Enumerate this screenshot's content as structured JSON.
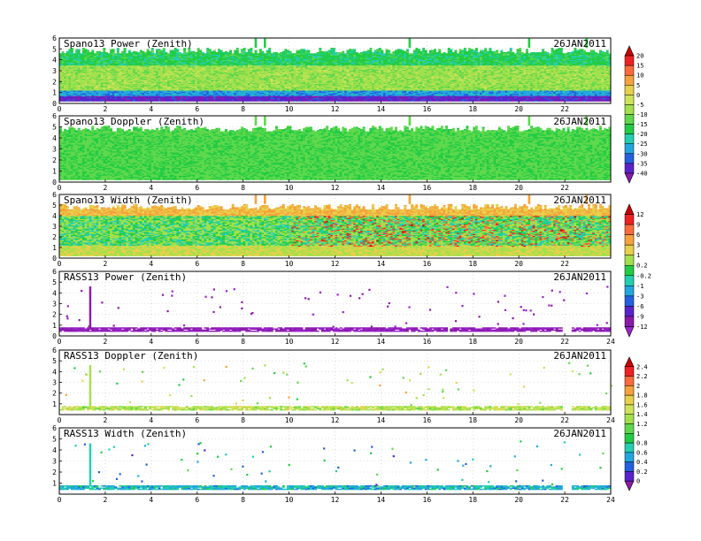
{
  "chart_data": [
    {
      "type": "heatmap",
      "title": "Spano13 Power (Zenith)",
      "date": "26JAN2011",
      "x_ticks": [
        "0",
        "2",
        "4",
        "6",
        "8",
        "10",
        "12",
        "14",
        "16",
        "18",
        "20",
        "22"
      ],
      "y_ticks": [
        "0",
        "1",
        "2",
        "3",
        "4",
        "5",
        "6"
      ],
      "xlim": [
        0,
        24
      ],
      "ylim": [
        0,
        6
      ],
      "scale_group": "A",
      "field": "power",
      "data_bands": [
        {
          "y": [
            0.2,
            0.7
          ],
          "value": -38
        },
        {
          "y": [
            0.7,
            1.2
          ],
          "value": -28
        },
        {
          "y": [
            1.2,
            3.5
          ],
          "value": -8
        },
        {
          "y": [
            3.5,
            5.1
          ],
          "value": -18
        }
      ],
      "top_height": 5.1
    },
    {
      "type": "heatmap",
      "title": "Spano13 Doppler (Zenith)",
      "date": "26JAN2011",
      "x_ticks": [
        "0",
        "2",
        "4",
        "6",
        "8",
        "10",
        "12",
        "14",
        "16",
        "18",
        "20",
        "22"
      ],
      "y_ticks": [
        "0",
        "1",
        "2",
        "3",
        "4",
        "5",
        "6"
      ],
      "xlim": [
        0,
        24
      ],
      "ylim": [
        0,
        6
      ],
      "scale_group": "A",
      "field": "doppler",
      "data_bands": [
        {
          "y": [
            0.2,
            5.1
          ],
          "value": -14
        }
      ],
      "top_height": 5.1
    },
    {
      "type": "heatmap",
      "title": "Spano13 Width (Zenith)",
      "date": "26JAN2011",
      "x_ticks": [
        "0",
        "2",
        "4",
        "6",
        "8",
        "10",
        "12",
        "14",
        "16",
        "18",
        "20",
        "22"
      ],
      "y_ticks": [
        "0",
        "1",
        "2",
        "3",
        "4",
        "5",
        "6"
      ],
      "xlim": [
        0,
        24
      ],
      "ylim": [
        0,
        6
      ],
      "scale_group": "B",
      "field": "width",
      "data_bands": [
        {
          "y": [
            0.2,
            1.2
          ],
          "value": 1
        },
        {
          "y": [
            1.2,
            4.0
          ],
          "value": 0.2
        },
        {
          "y": [
            4.0,
            5.1
          ],
          "value": 3
        }
      ],
      "top_height": 5.1
    },
    {
      "type": "heatmap",
      "title": "RASS13 Power (Zenith)",
      "date": "26JAN2011",
      "x_ticks": [
        "0",
        "2",
        "4",
        "6",
        "8",
        "10",
        "12",
        "14",
        "16",
        "18",
        "20",
        "22",
        "24"
      ],
      "y_ticks": [
        "0",
        "1",
        "2",
        "3",
        "4",
        "5",
        "6"
      ],
      "xlim": [
        0,
        24
      ],
      "ylim": [
        0,
        6
      ],
      "scale_group": "B",
      "field": "rass_power",
      "data_bands": [
        {
          "y": [
            0.4,
            0.75
          ],
          "value": -12
        }
      ],
      "spike": {
        "x": 1.3,
        "y": [
          0.75,
          4.6
        ],
        "value": -12
      }
    },
    {
      "type": "heatmap",
      "title": "RASS13 Doppler (Zenith)",
      "date": "26JAN2011",
      "x_ticks": [
        "0",
        "2",
        "4",
        "6",
        "8",
        "10",
        "12",
        "14",
        "16",
        "18",
        "20",
        "22",
        "24"
      ],
      "y_ticks": [
        "1",
        "2",
        "3",
        "4",
        "5",
        "6"
      ],
      "xlim": [
        0,
        24
      ],
      "ylim": [
        0,
        6
      ],
      "scale_group": "C",
      "field": "rass_doppler",
      "data_bands": [
        {
          "y": [
            0.4,
            0.75
          ],
          "value": 1.4
        }
      ],
      "spike": {
        "x": 1.3,
        "y": [
          0.75,
          4.6
        ],
        "value": 1.2
      }
    },
    {
      "type": "heatmap",
      "title": "RASS13 Width (Zenith)",
      "date": "26JAN2011",
      "x_ticks": [
        "0",
        "2",
        "4",
        "6",
        "8",
        "10",
        "12",
        "14",
        "16",
        "18",
        "20",
        "22",
        "24"
      ],
      "y_ticks": [
        "1",
        "2",
        "3",
        "4",
        "5",
        "6"
      ],
      "xlim": [
        0,
        24
      ],
      "ylim": [
        0,
        6
      ],
      "scale_group": "C",
      "field": "rass_width",
      "data_bands": [
        {
          "y": [
            0.4,
            0.75
          ],
          "value": 0.6
        }
      ],
      "spike": {
        "x": 1.3,
        "y": [
          0.75,
          4.6
        ],
        "value": 0.6
      }
    }
  ],
  "colorbars": [
    {
      "group": "A",
      "labels": [
        "20",
        "15",
        "10",
        "5",
        "0",
        "-5",
        "-10",
        "-15",
        "-20",
        "-25",
        "-30",
        "-35",
        "-40"
      ],
      "colors": [
        "#cc0000",
        "#ee2222",
        "#ff6a3a",
        "#f6a23c",
        "#e8d04a",
        "#cfe35a",
        "#a2e04c",
        "#5fd84c",
        "#22cc44",
        "#22cfb0",
        "#22a6e0",
        "#2460e0",
        "#5a22cc",
        "#8a1aaa"
      ]
    },
    {
      "group": "B",
      "labels": [
        "12",
        "9",
        "6",
        "3",
        "1",
        "0.2",
        "-0.2",
        "-1",
        "-3",
        "-6",
        "-9",
        "-12"
      ],
      "colors": [
        "#cc0000",
        "#ee2222",
        "#ff6a3a",
        "#f6a23c",
        "#e8d04a",
        "#a2e04c",
        "#22cc44",
        "#22cfb0",
        "#22a6e0",
        "#2460e0",
        "#5a22cc",
        "#8a1aaa",
        "#9a22cc"
      ]
    },
    {
      "group": "C",
      "labels": [
        "2.4",
        "2.2",
        "2",
        "1.8",
        "1.6",
        "1.4",
        "1.2",
        "1",
        "0.8",
        "0.6",
        "0.4",
        "0.2",
        "0"
      ],
      "colors": [
        "#cc0000",
        "#ee2222",
        "#ff6a3a",
        "#f6a23c",
        "#e8d04a",
        "#cfe35a",
        "#a2e04c",
        "#5fd84c",
        "#22cc44",
        "#22cfb0",
        "#22a6e0",
        "#2460e0",
        "#5a22cc",
        "#8a1aaa"
      ]
    }
  ]
}
